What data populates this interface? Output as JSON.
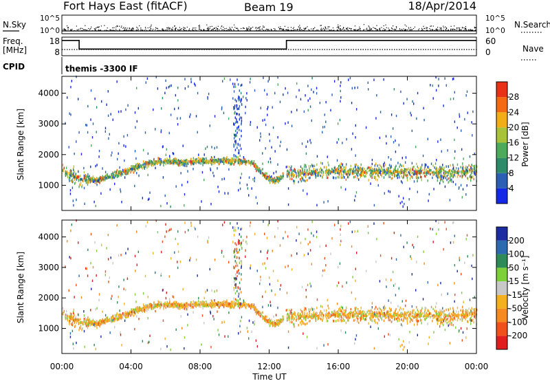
{
  "header": {
    "title": "Fort Hays East (fitACF)",
    "beam": "Beam 19",
    "date": "18/Apr/2014"
  },
  "top_panel": {
    "left_label": "N.Sky",
    "right_label": "N.Search",
    "ticks": [
      "10^5",
      "10^0"
    ]
  },
  "freq_panel": {
    "label_line1": "Freq.",
    "label_line2": "[MHz]",
    "left_ticks": [
      "18",
      "8"
    ],
    "right_ticks": [
      "60",
      "0"
    ],
    "right_label": "Nave"
  },
  "cpid": {
    "label": "CPID",
    "value": "themis -3300 IF"
  },
  "colors": {
    "power_scale": [
      "#1428e6",
      "#2a5fb3",
      "#2e8b6a",
      "#4caa5a",
      "#a8c23a",
      "#f3ad17",
      "#f36a12",
      "#e83218"
    ],
    "velocity_scale": [
      "#e01e1e",
      "#f0501a",
      "#f58a20",
      "#f5b020",
      "#c8c8c8",
      "#7ed03a",
      "#2e8b57",
      "#2c6ab0",
      "#1c2ca0"
    ]
  },
  "power_colorbar": {
    "label": "Power [dB]",
    "ticks": [
      "4",
      "8",
      "12",
      "16",
      "20",
      "24",
      "28"
    ]
  },
  "velocity_colorbar": {
    "label": "Velocity [m s⁻¹]",
    "ticks": [
      "-200",
      "-100",
      "-50",
      "-15",
      "15",
      "50",
      "100",
      "200"
    ]
  },
  "chart_data": [
    {
      "type": "heatmap",
      "name": "power",
      "ylabel": "Slant Range [km]",
      "xlim_hours": [
        0,
        24
      ],
      "ylim_km": [
        180,
        4550
      ],
      "yticks": [
        "1000",
        "2000",
        "3000",
        "4000"
      ],
      "clim_db": [
        0,
        32
      ],
      "ridge": [
        [
          0,
          1450
        ],
        [
          1,
          1180
        ],
        [
          2,
          1120
        ],
        [
          3,
          1300
        ],
        [
          4,
          1480
        ],
        [
          5,
          1700
        ],
        [
          6,
          1740
        ],
        [
          7,
          1720
        ],
        [
          8,
          1760
        ],
        [
          9,
          1760
        ],
        [
          10,
          1780
        ],
        [
          11,
          1700
        ],
        [
          11.8,
          1250
        ],
        [
          12.3,
          1100
        ],
        [
          13,
          1320
        ],
        [
          14,
          1360
        ],
        [
          16,
          1430
        ],
        [
          18,
          1420
        ],
        [
          20,
          1400
        ],
        [
          22,
          1380
        ],
        [
          24,
          1450
        ]
      ],
      "gap_hours": [
        12.8,
        13.0
      ]
    },
    {
      "type": "heatmap",
      "name": "velocity",
      "ylabel": "Slant Range [km]",
      "xlabel": "Time UT",
      "xlim_hours": [
        0,
        24
      ],
      "ylim_km": [
        180,
        4550
      ],
      "yticks": [
        "1000",
        "2000",
        "3000",
        "4000"
      ],
      "xticks": [
        "00:00",
        "04:00",
        "08:00",
        "12:00",
        "16:00",
        "20:00",
        "00:00"
      ],
      "clim_ms": [
        -250,
        250
      ]
    },
    {
      "type": "line",
      "name": "frequency",
      "x_hours": [
        0,
        1,
        1,
        13,
        13,
        24
      ],
      "y_mhz": [
        16.2,
        16.2,
        11.6,
        11.6,
        16.2,
        16.2
      ]
    }
  ]
}
